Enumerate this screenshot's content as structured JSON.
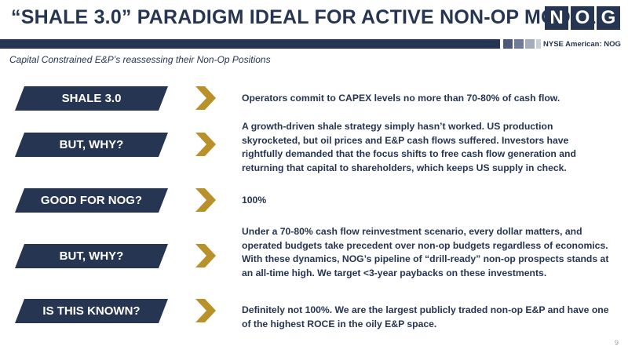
{
  "header": {
    "title": "“SHALE 3.0” PARADIGM IDEAL FOR ACTIVE NON-OP MODEL",
    "logo_letters": [
      "N",
      "O",
      "G"
    ],
    "ticker": "NYSE American: NOG",
    "subtitle": "Capital Constrained E&P’s reassessing their Non-Op Positions"
  },
  "colors": {
    "navy": "#263551",
    "gold": "#B8912A",
    "square_1": "#4a5a78",
    "square_2": "#6e7c95",
    "square_3": "#a3adbe",
    "square_4": "#c9cfd9"
  },
  "rows": [
    {
      "label": "SHALE 3.0",
      "text": "Operators commit to CAPEX levels no more than 70-80% of cash flow."
    },
    {
      "label": "BUT, WHY?",
      "text": "A growth-driven shale strategy simply hasn’t worked. US production skyrocketed, but oil prices and E&P cash flows suffered. Investors have rightfully demanded that the focus shifts to free cash flow generation and returning that capital to shareholders, which keeps US supply in check."
    },
    {
      "label": "GOOD FOR NOG?",
      "text": "100%"
    },
    {
      "label": "BUT, WHY?",
      "text": "Under a 70-80% cash flow reinvestment scenario, every dollar matters, and operated budgets take precedent over non-op budgets regardless of economics. With these dynamics, NOG’s pipeline of “drill-ready” non-op prospects stands at an all-time high. We target <3-year paybacks on these investments."
    },
    {
      "label": "IS THIS KNOWN?",
      "text": "Definitely not 100%. We are the largest publicly traded non-op E&P  and have one of the highest ROCE in the oily E&P space."
    }
  ],
  "page_number": "9"
}
